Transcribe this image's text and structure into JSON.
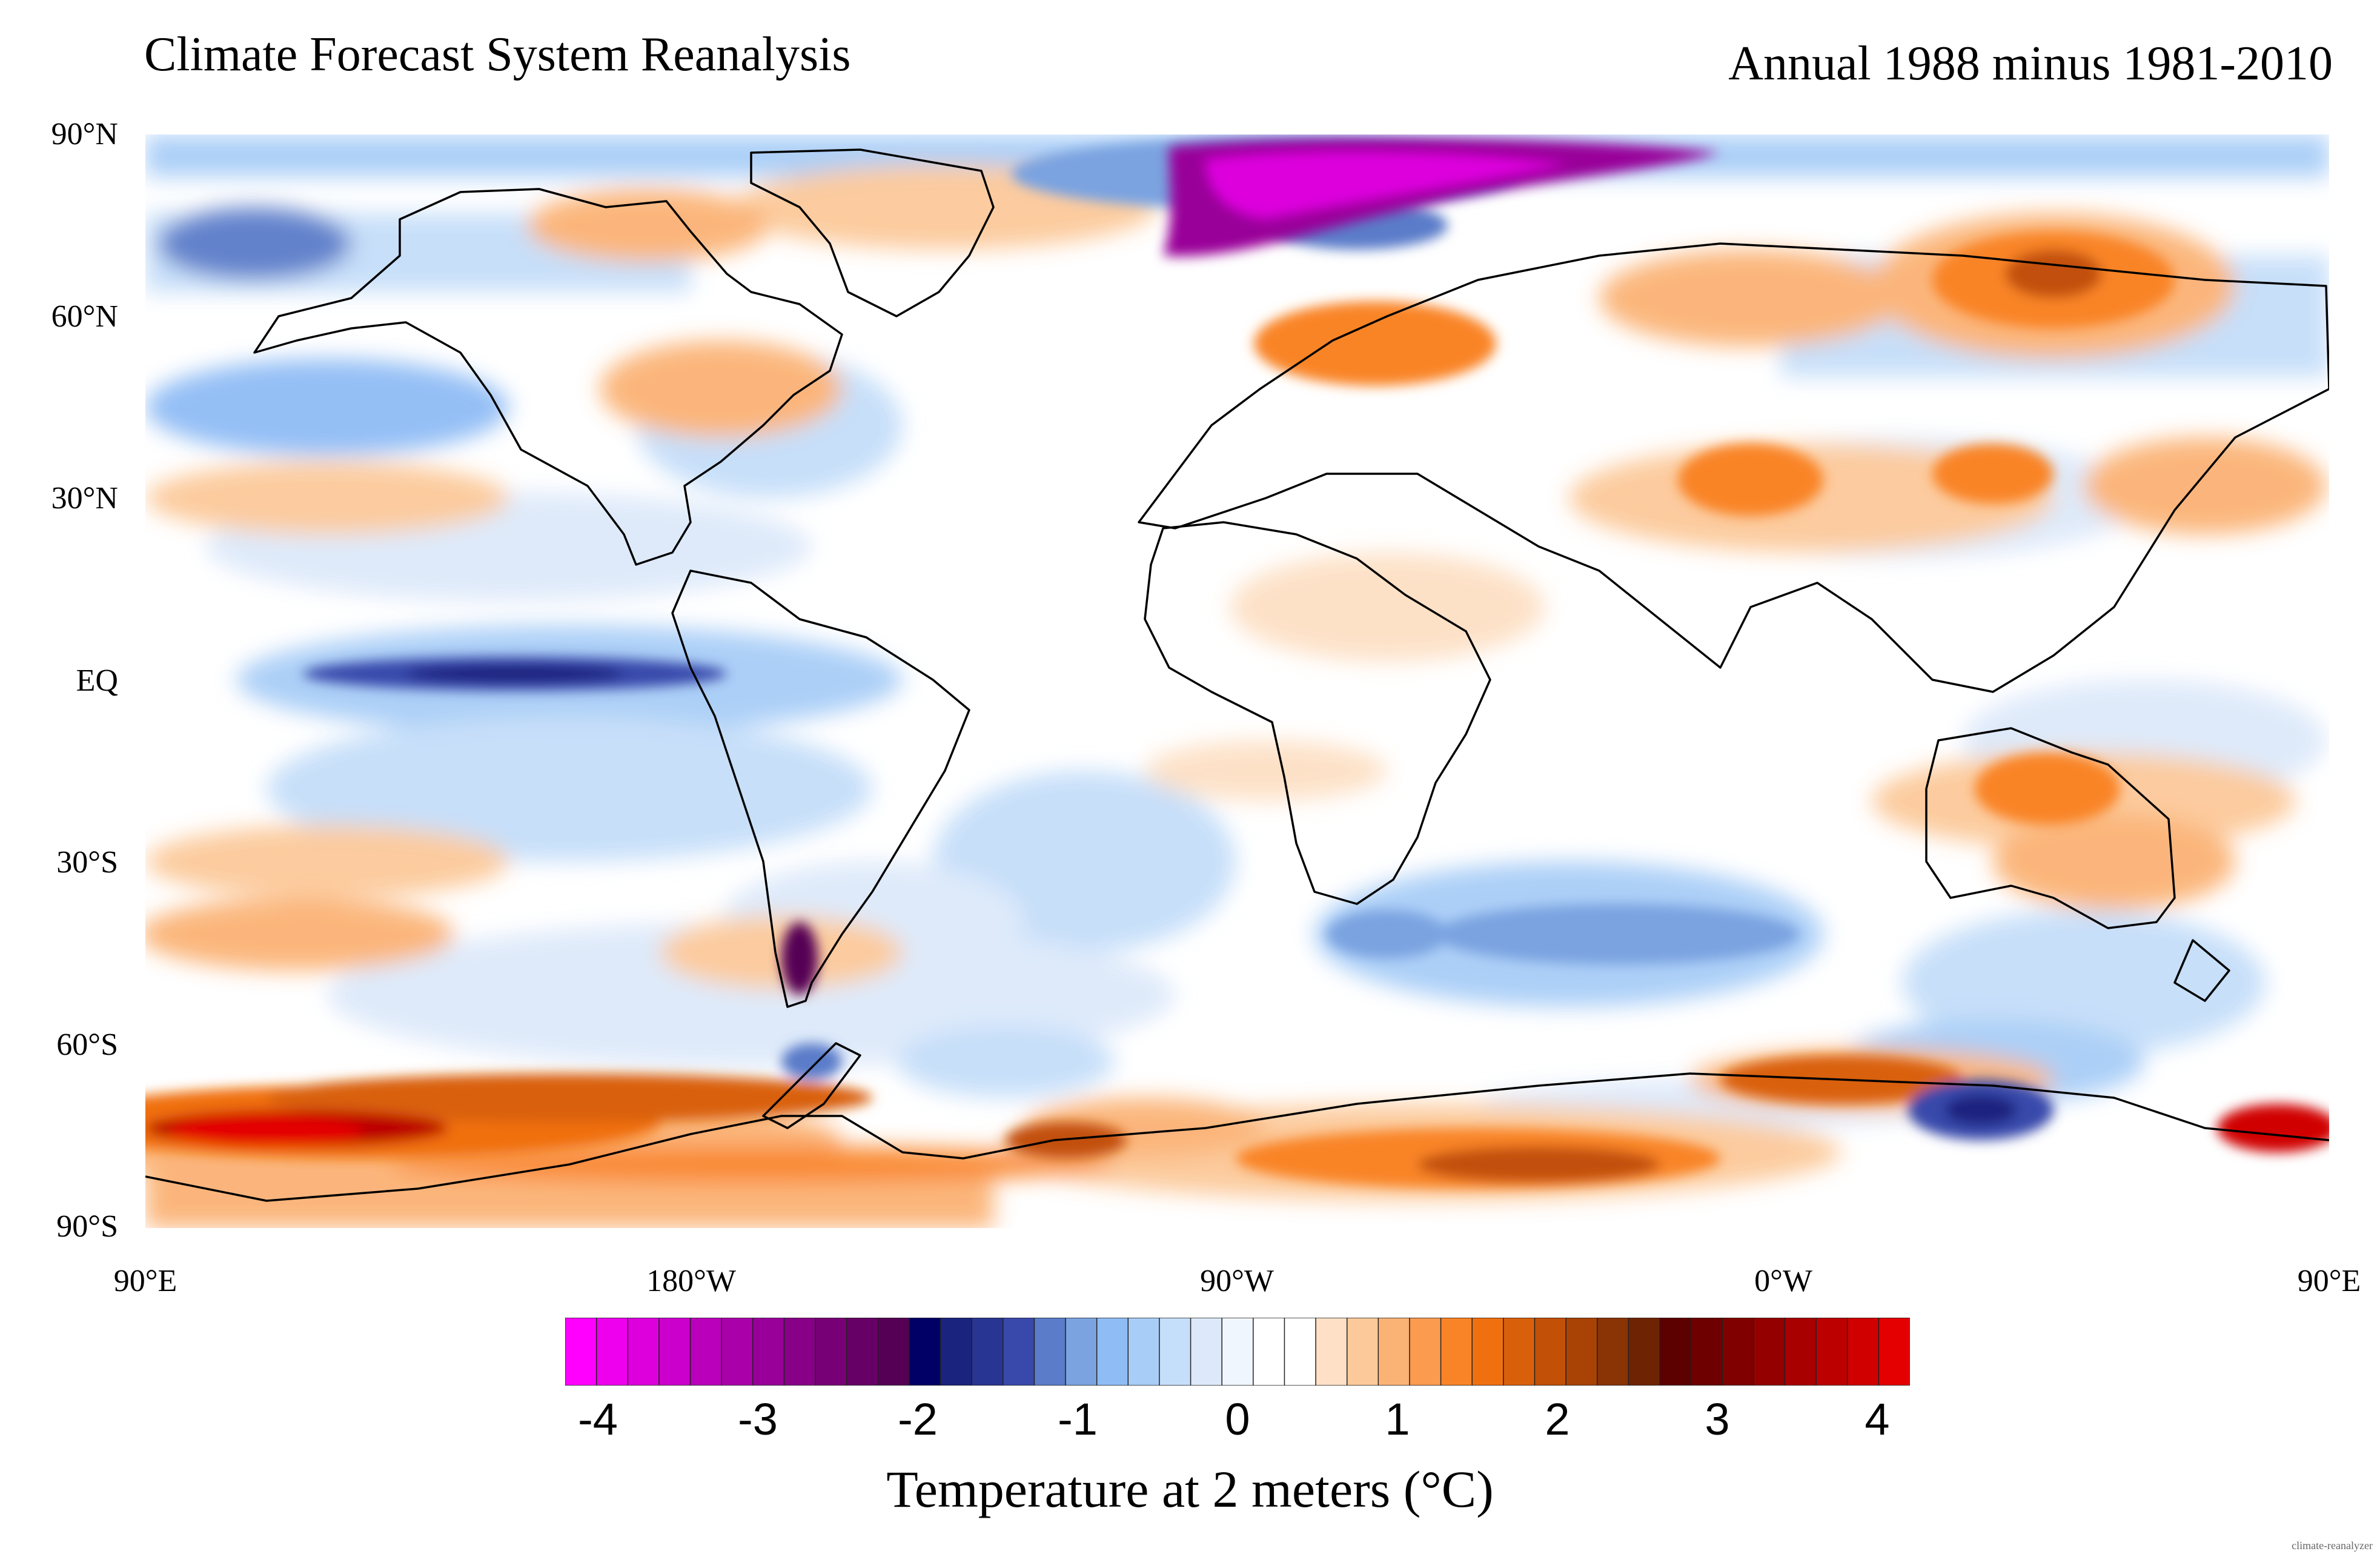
{
  "header": {
    "title": "Climate Forecast System Reanalysis",
    "subtitle": "Annual 1988 minus 1981-2010"
  },
  "axes": {
    "lat_ticks": [
      "90°N",
      "60°N",
      "30°N",
      "EQ",
      "30°S",
      "60°S",
      "90°S"
    ],
    "lon_ticks": [
      "90°E",
      "180°W",
      "90°W",
      "0°W",
      "90°E"
    ]
  },
  "colorbar": {
    "title": "Temperature at 2 meters (°C)",
    "tick_labels": [
      "-4",
      "-3",
      "-2",
      "-1",
      "0",
      "1",
      "2",
      "3",
      "4"
    ],
    "range": [
      -4.2,
      4.2
    ],
    "step": 0.2,
    "colors": [
      "#ff00ff",
      "#ee00ee",
      "#dd00dd",
      "#cc00cc",
      "#bb00bb",
      "#aa00aa",
      "#990099",
      "#880088",
      "#770077",
      "#660066",
      "#550055",
      "#000066",
      "#1a237e",
      "#283593",
      "#3949ab",
      "#5a7cc9",
      "#7aa3e0",
      "#8fbcf5",
      "#a8cdf7",
      "#c5def9",
      "#dde9fa",
      "#f0f6fd",
      "#ffffff",
      "#ffffff",
      "#fde0c5",
      "#fcc99a",
      "#fbb275",
      "#fa9b4f",
      "#f98427",
      "#f07010",
      "#d9600b",
      "#c25007",
      "#a84205",
      "#8a3304",
      "#6e2403",
      "#5c0000",
      "#6e0000",
      "#800000",
      "#940000",
      "#a80000",
      "#bc0000",
      "#d00000",
      "#e40000"
    ]
  },
  "credit": "climate-reanalyzer"
}
